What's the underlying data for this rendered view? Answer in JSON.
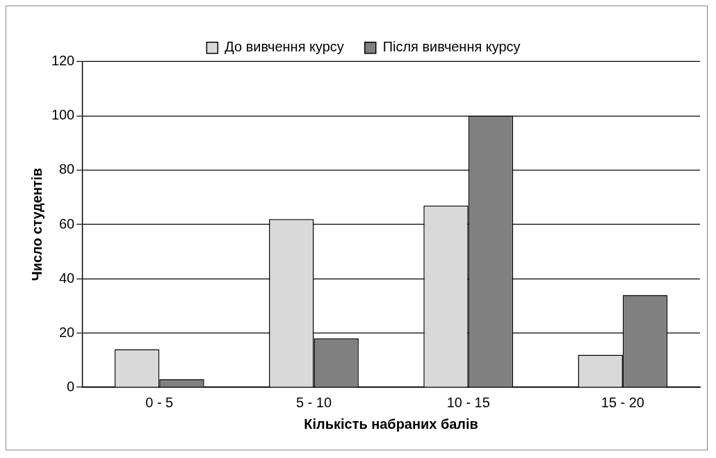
{
  "chart_data": {
    "type": "bar",
    "xlabel": "Кількість набраних балів",
    "ylabel": "Число студентів",
    "categories": [
      "0 - 5",
      "5 - 10",
      "10 - 15",
      "15 - 20"
    ],
    "series": [
      {
        "name": "До вивчення курсу",
        "color": "#d9d9d9",
        "values": [
          14,
          62,
          67,
          12
        ]
      },
      {
        "name": "Після вивчення курсу",
        "color": "#808080",
        "values": [
          3,
          18,
          100,
          34
        ]
      }
    ],
    "ylim": [
      0,
      120
    ],
    "yticks": [
      0,
      20,
      40,
      60,
      80,
      100,
      120
    ],
    "grid": "y",
    "legend": "top"
  }
}
